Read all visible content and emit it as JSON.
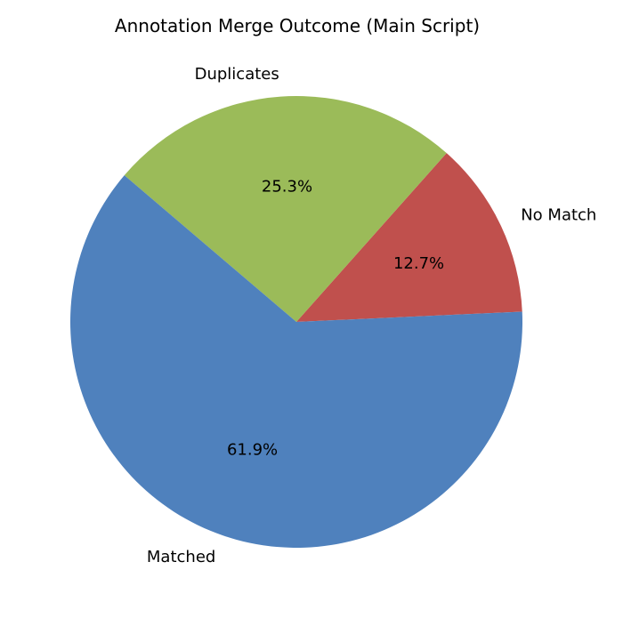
{
  "chart_data": {
    "type": "pie",
    "title": "Annotation Merge Outcome (Main Script)",
    "labels": [
      "No Match",
      "Duplicates",
      "Matched"
    ],
    "values": [
      12.7,
      25.3,
      61.9
    ],
    "value_labels": [
      "12.7%",
      "25.3%",
      "61.9%"
    ],
    "colors": [
      "#c0504d",
      "#9bbb59",
      "#4f81bd"
    ],
    "start_angle_deg": 2.6,
    "direction": "counterclockwise",
    "legend": "none"
  }
}
